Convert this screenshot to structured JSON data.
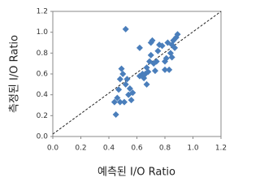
{
  "chart_data": {
    "type": "scatter",
    "x_label": "예측된 I/O Ratio",
    "y_label": "측정된 I/O Ratio",
    "color": "#4a7ebb",
    "xlim": [
      0,
      1.2
    ],
    "ylim": [
      0,
      1.2
    ],
    "xticks": [
      {
        "value": 0,
        "label": "0.0"
      },
      0.2,
      0.4,
      0.6,
      0.8,
      {
        "value": 1,
        "label": "1.0"
      },
      1.2
    ],
    "yticks": [
      {
        "value": 0,
        "label": "0.0"
      },
      0.2,
      0.4,
      0.6,
      0.8,
      {
        "value": 1,
        "label": "1.0"
      },
      1.2
    ],
    "x": [
      0.52,
      0.44,
      0.45,
      0.46,
      0.47,
      0.48,
      0.49,
      0.5,
      0.52,
      0.53,
      0.51,
      0.54,
      0.55,
      0.56,
      0.57,
      0.48,
      0.62,
      0.64,
      0.65,
      0.66,
      0.67,
      0.68,
      0.69,
      0.7,
      0.71,
      0.7,
      0.72,
      0.73,
      0.74,
      0.75,
      0.67,
      0.78,
      0.8,
      0.81,
      0.82,
      0.83,
      0.84,
      0.85,
      0.86,
      0.87,
      0.88,
      0.89,
      0.8,
      0.76,
      0.85,
      0.62
    ],
    "values": [
      1.03,
      0.33,
      0.21,
      0.37,
      0.45,
      0.55,
      0.65,
      0.6,
      0.5,
      0.55,
      0.33,
      0.4,
      0.46,
      0.35,
      0.42,
      0.33,
      0.85,
      0.6,
      0.56,
      0.6,
      0.5,
      0.62,
      0.72,
      0.9,
      0.92,
      0.78,
      0.7,
      0.63,
      0.72,
      0.82,
      0.66,
      0.87,
      0.72,
      0.75,
      0.9,
      0.64,
      0.8,
      0.88,
      0.92,
      0.85,
      0.95,
      0.98,
      0.64,
      0.88,
      0.76,
      0.58
    ]
  }
}
